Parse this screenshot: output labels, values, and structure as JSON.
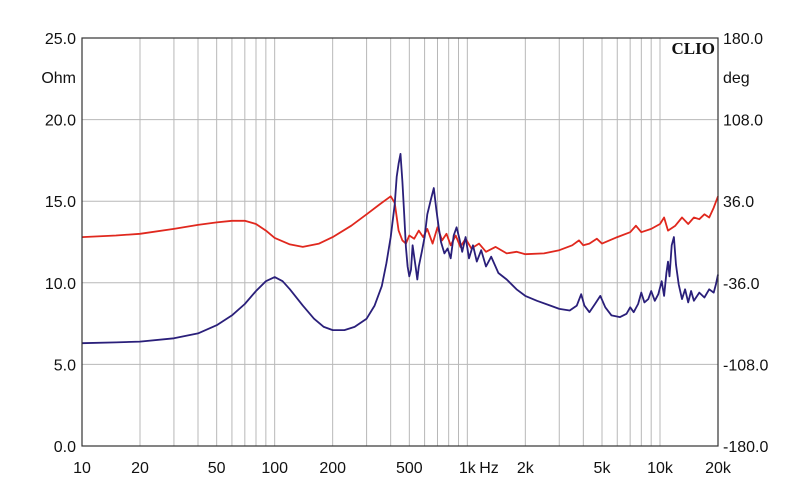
{
  "chart_data": {
    "type": "line",
    "title": "",
    "brand": "CLIO",
    "xscale": "log",
    "xlim": [
      10,
      20000
    ],
    "grid": true,
    "x_tick_labels": [
      {
        "v": 10,
        "t": "10"
      },
      {
        "v": 20,
        "t": "20"
      },
      {
        "v": 50,
        "t": "50"
      },
      {
        "v": 100,
        "t": "100"
      },
      {
        "v": 200,
        "t": "200"
      },
      {
        "v": 500,
        "t": "500"
      },
      {
        "v": 1000,
        "t": "1k"
      },
      {
        "v": 2000,
        "t": "2k"
      },
      {
        "v": 5000,
        "t": "5k"
      },
      {
        "v": 10000,
        "t": "10k"
      },
      {
        "v": 20000,
        "t": "20k"
      }
    ],
    "x_unit": "Hz",
    "left_axis": {
      "unit": "Ohm",
      "ylim": [
        0,
        25
      ],
      "ticks": [
        {
          "v": 0,
          "t": "0.0"
        },
        {
          "v": 5,
          "t": "5.0"
        },
        {
          "v": 10,
          "t": "10.0"
        },
        {
          "v": 15,
          "t": "15.0"
        },
        {
          "v": 20,
          "t": "20.0"
        },
        {
          "v": 25,
          "t": "25.0"
        }
      ]
    },
    "right_axis": {
      "unit": "deg",
      "ylim": [
        -180,
        180
      ],
      "ticks": [
        {
          "v": -180,
          "t": "-180.0"
        },
        {
          "v": -108,
          "t": "-108.0"
        },
        {
          "v": -36,
          "t": "-36.0"
        },
        {
          "v": 36,
          "t": "36.0"
        },
        {
          "v": 108,
          "t": "108.0"
        },
        {
          "v": 180,
          "t": "180.0"
        }
      ]
    },
    "series": [
      {
        "color": "#e0281e",
        "axis": "left",
        "points": [
          [
            10,
            12.8
          ],
          [
            15,
            12.9
          ],
          [
            20,
            13.0
          ],
          [
            30,
            13.3
          ],
          [
            40,
            13.55
          ],
          [
            50,
            13.7
          ],
          [
            60,
            13.8
          ],
          [
            70,
            13.8
          ],
          [
            80,
            13.6
          ],
          [
            90,
            13.2
          ],
          [
            100,
            12.75
          ],
          [
            120,
            12.35
          ],
          [
            140,
            12.2
          ],
          [
            170,
            12.4
          ],
          [
            200,
            12.8
          ],
          [
            250,
            13.5
          ],
          [
            300,
            14.2
          ],
          [
            350,
            14.8
          ],
          [
            400,
            15.3
          ],
          [
            420,
            14.9
          ],
          [
            440,
            13.2
          ],
          [
            460,
            12.6
          ],
          [
            480,
            12.4
          ],
          [
            500,
            12.9
          ],
          [
            530,
            12.7
          ],
          [
            560,
            13.2
          ],
          [
            590,
            12.8
          ],
          [
            620,
            13.3
          ],
          [
            660,
            12.4
          ],
          [
            700,
            13.4
          ],
          [
            740,
            12.6
          ],
          [
            780,
            13.0
          ],
          [
            820,
            12.3
          ],
          [
            870,
            12.9
          ],
          [
            920,
            12.2
          ],
          [
            980,
            12.7
          ],
          [
            1050,
            12.1
          ],
          [
            1150,
            12.4
          ],
          [
            1250,
            11.9
          ],
          [
            1400,
            12.2
          ],
          [
            1600,
            11.8
          ],
          [
            1800,
            11.9
          ],
          [
            2000,
            11.75
          ],
          [
            2500,
            11.8
          ],
          [
            3000,
            12.0
          ],
          [
            3500,
            12.3
          ],
          [
            3800,
            12.6
          ],
          [
            4000,
            12.3
          ],
          [
            4300,
            12.4
          ],
          [
            4700,
            12.7
          ],
          [
            5000,
            12.4
          ],
          [
            6000,
            12.8
          ],
          [
            7000,
            13.1
          ],
          [
            7500,
            13.5
          ],
          [
            8000,
            13.1
          ],
          [
            9000,
            13.3
          ],
          [
            10000,
            13.6
          ],
          [
            10500,
            14.0
          ],
          [
            11000,
            13.2
          ],
          [
            12000,
            13.5
          ],
          [
            13000,
            14.0
          ],
          [
            14000,
            13.6
          ],
          [
            15000,
            14.0
          ],
          [
            16000,
            13.9
          ],
          [
            17000,
            14.2
          ],
          [
            18000,
            14.0
          ],
          [
            19000,
            14.6
          ],
          [
            20000,
            15.3
          ]
        ]
      },
      {
        "color": "#2a1f7a",
        "axis": "left",
        "points": [
          [
            10,
            6.3
          ],
          [
            15,
            6.35
          ],
          [
            20,
            6.4
          ],
          [
            30,
            6.6
          ],
          [
            40,
            6.9
          ],
          [
            50,
            7.4
          ],
          [
            60,
            8.0
          ],
          [
            70,
            8.7
          ],
          [
            80,
            9.5
          ],
          [
            90,
            10.1
          ],
          [
            100,
            10.35
          ],
          [
            110,
            10.1
          ],
          [
            120,
            9.6
          ],
          [
            140,
            8.6
          ],
          [
            160,
            7.8
          ],
          [
            180,
            7.3
          ],
          [
            200,
            7.1
          ],
          [
            230,
            7.1
          ],
          [
            260,
            7.3
          ],
          [
            300,
            7.8
          ],
          [
            330,
            8.6
          ],
          [
            360,
            9.8
          ],
          [
            380,
            11.2
          ],
          [
            400,
            12.8
          ],
          [
            420,
            14.8
          ],
          [
            430,
            16.5
          ],
          [
            440,
            17.3
          ],
          [
            450,
            17.9
          ],
          [
            460,
            16.2
          ],
          [
            470,
            14.2
          ],
          [
            480,
            12.2
          ],
          [
            490,
            11.0
          ],
          [
            500,
            10.4
          ],
          [
            510,
            10.8
          ],
          [
            520,
            12.3
          ],
          [
            530,
            11.6
          ],
          [
            540,
            10.9
          ],
          [
            550,
            10.2
          ],
          [
            560,
            11.0
          ],
          [
            580,
            11.9
          ],
          [
            600,
            12.8
          ],
          [
            620,
            14.2
          ],
          [
            650,
            15.2
          ],
          [
            670,
            15.8
          ],
          [
            690,
            14.5
          ],
          [
            710,
            13.4
          ],
          [
            730,
            12.5
          ],
          [
            760,
            11.8
          ],
          [
            790,
            12.1
          ],
          [
            820,
            11.5
          ],
          [
            850,
            12.9
          ],
          [
            880,
            13.4
          ],
          [
            910,
            12.7
          ],
          [
            940,
            11.9
          ],
          [
            980,
            12.8
          ],
          [
            1020,
            11.5
          ],
          [
            1070,
            12.3
          ],
          [
            1120,
            11.3
          ],
          [
            1180,
            12.0
          ],
          [
            1250,
            11.0
          ],
          [
            1330,
            11.6
          ],
          [
            1450,
            10.6
          ],
          [
            1600,
            10.2
          ],
          [
            1800,
            9.6
          ],
          [
            2000,
            9.2
          ],
          [
            2300,
            8.9
          ],
          [
            2700,
            8.6
          ],
          [
            3000,
            8.4
          ],
          [
            3400,
            8.3
          ],
          [
            3700,
            8.6
          ],
          [
            3900,
            9.3
          ],
          [
            4050,
            8.6
          ],
          [
            4300,
            8.2
          ],
          [
            4600,
            8.7
          ],
          [
            4900,
            9.2
          ],
          [
            5200,
            8.5
          ],
          [
            5600,
            8.0
          ],
          [
            6200,
            7.9
          ],
          [
            6700,
            8.1
          ],
          [
            7000,
            8.5
          ],
          [
            7300,
            8.2
          ],
          [
            7700,
            8.7
          ],
          [
            8000,
            9.4
          ],
          [
            8300,
            8.8
          ],
          [
            8700,
            9.0
          ],
          [
            9000,
            9.5
          ],
          [
            9400,
            8.9
          ],
          [
            9800,
            9.3
          ],
          [
            10200,
            10.1
          ],
          [
            10500,
            9.2
          ],
          [
            10800,
            10.6
          ],
          [
            11000,
            11.3
          ],
          [
            11200,
            10.4
          ],
          [
            11500,
            12.3
          ],
          [
            11800,
            12.8
          ],
          [
            12100,
            11.1
          ],
          [
            12500,
            9.9
          ],
          [
            13000,
            9.0
          ],
          [
            13500,
            9.6
          ],
          [
            14000,
            8.8
          ],
          [
            14500,
            9.5
          ],
          [
            15000,
            8.9
          ],
          [
            16000,
            9.4
          ],
          [
            17000,
            9.1
          ],
          [
            18000,
            9.6
          ],
          [
            19000,
            9.4
          ],
          [
            19500,
            9.9
          ],
          [
            20000,
            10.5
          ]
        ]
      }
    ]
  }
}
